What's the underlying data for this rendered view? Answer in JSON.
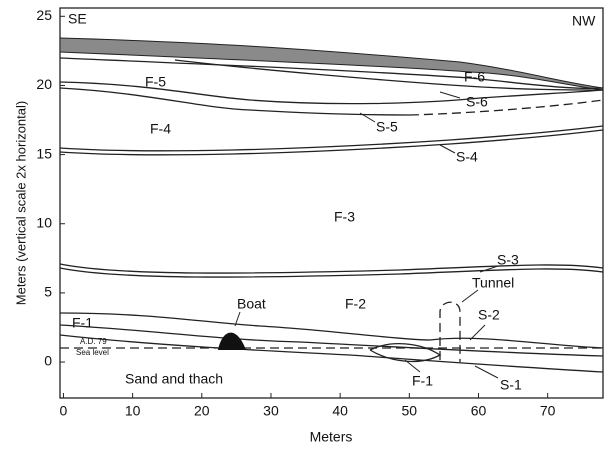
{
  "axes": {
    "x": {
      "title": "Meters",
      "lim": [
        -0.5,
        78
      ],
      "ticks": [
        0,
        10,
        20,
        30,
        40,
        50,
        60,
        70
      ]
    },
    "y": {
      "title": "Meters (vertical scale 2x horizontal)",
      "lim": [
        -2.6,
        25.6
      ],
      "ticks": [
        0,
        5,
        10,
        15,
        20,
        25
      ]
    }
  },
  "labels": [
    "SE",
    "NW",
    "F-5",
    "F-6",
    "S-6",
    "F-4",
    "S-5",
    "S-4",
    "F-3",
    "S-3",
    "Tunnel",
    "F-2",
    "Boat",
    "F-1",
    "S-2",
    "A.D. 79",
    "Sea level",
    "Sand and thach",
    "F-1",
    "S-1"
  ]
}
